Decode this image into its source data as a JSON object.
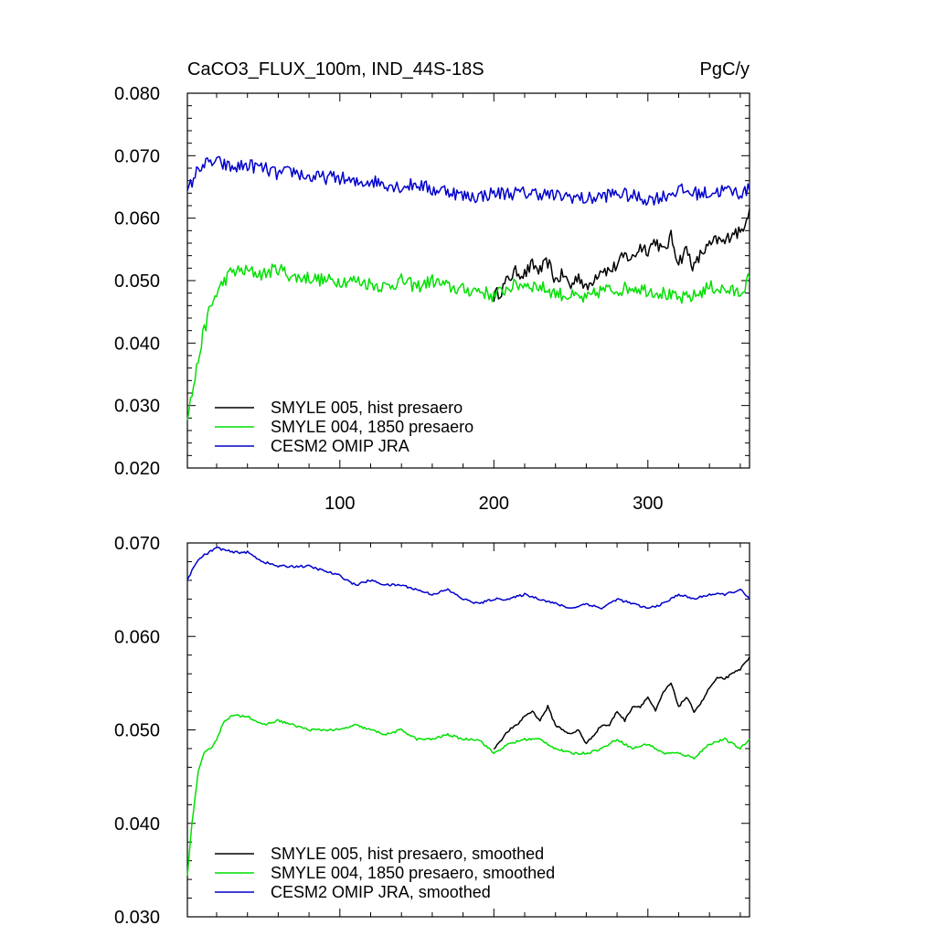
{
  "header": {
    "title": "CaCO3_FLUX_100m, IND_44S-18S",
    "units": "PgC/y"
  },
  "colors": {
    "black_series": "#000000",
    "green_series": "#00e000",
    "blue_series": "#0000cc"
  },
  "chart_data": [
    {
      "type": "line",
      "panel": "top",
      "xlim": [
        1,
        366
      ],
      "ylim": [
        0.02,
        0.08
      ],
      "x_tick_labels": [
        "100",
        "200",
        "300"
      ],
      "x_ticks": [
        100,
        200,
        300
      ],
      "y_ticks": [
        0.02,
        0.03,
        0.04,
        0.05,
        0.06,
        0.07,
        0.08
      ],
      "y_tick_labels": [
        "0.020",
        "0.030",
        "0.040",
        "0.050",
        "0.060",
        "0.070",
        "0.080"
      ],
      "grid": false,
      "legend_position": "bottom-left",
      "series": [
        {
          "name": "SMYLE 005, hist presaero",
          "color": "#000000",
          "points": [
            [
              200,
              0.0475
            ],
            [
              205,
              0.0485
            ],
            [
              210,
              0.0505
            ],
            [
              215,
              0.0515
            ],
            [
              220,
              0.051
            ],
            [
              225,
              0.0525
            ],
            [
              230,
              0.0515
            ],
            [
              235,
              0.053
            ],
            [
              240,
              0.05
            ],
            [
              245,
              0.051
            ],
            [
              250,
              0.049
            ],
            [
              255,
              0.051
            ],
            [
              260,
              0.0485
            ],
            [
              265,
              0.0505
            ],
            [
              270,
              0.052
            ],
            [
              275,
              0.0515
            ],
            [
              280,
              0.0525
            ],
            [
              285,
              0.054
            ],
            [
              290,
              0.0535
            ],
            [
              295,
              0.0555
            ],
            [
              300,
              0.055
            ],
            [
              305,
              0.0565
            ],
            [
              310,
              0.0545
            ],
            [
              315,
              0.057
            ],
            [
              320,
              0.053
            ],
            [
              325,
              0.055
            ],
            [
              330,
              0.052
            ],
            [
              335,
              0.0545
            ],
            [
              340,
              0.0555
            ],
            [
              345,
              0.0565
            ],
            [
              350,
              0.056
            ],
            [
              355,
              0.058
            ],
            [
              360,
              0.0575
            ],
            [
              366,
              0.0615
            ]
          ]
        },
        {
          "name": "SMYLE 004, 1850 presaero",
          "color": "#00e000",
          "points": [
            [
              1,
              0.0285
            ],
            [
              5,
              0.033
            ],
            [
              10,
              0.04
            ],
            [
              15,
              0.045
            ],
            [
              20,
              0.048
            ],
            [
              25,
              0.05
            ],
            [
              30,
              0.0515
            ],
            [
              40,
              0.0515
            ],
            [
              50,
              0.051
            ],
            [
              60,
              0.052
            ],
            [
              70,
              0.0505
            ],
            [
              80,
              0.0505
            ],
            [
              90,
              0.05
            ],
            [
              100,
              0.05
            ],
            [
              110,
              0.05
            ],
            [
              120,
              0.0495
            ],
            [
              130,
              0.049
            ],
            [
              140,
              0.05
            ],
            [
              150,
              0.049
            ],
            [
              160,
              0.05
            ],
            [
              170,
              0.049
            ],
            [
              180,
              0.0485
            ],
            [
              190,
              0.0485
            ],
            [
              200,
              0.0475
            ],
            [
              210,
              0.049
            ],
            [
              220,
              0.0495
            ],
            [
              230,
              0.049
            ],
            [
              240,
              0.048
            ],
            [
              250,
              0.0475
            ],
            [
              260,
              0.047
            ],
            [
              270,
              0.0485
            ],
            [
              280,
              0.0485
            ],
            [
              290,
              0.049
            ],
            [
              300,
              0.0485
            ],
            [
              310,
              0.048
            ],
            [
              320,
              0.047
            ],
            [
              330,
              0.0475
            ],
            [
              340,
              0.049
            ],
            [
              350,
              0.0485
            ],
            [
              360,
              0.048
            ],
            [
              366,
              0.0505
            ]
          ]
        },
        {
          "name": "CESM2 OMIP JRA",
          "color": "#0000cc",
          "points": [
            [
              1,
              0.064
            ],
            [
              5,
              0.0665
            ],
            [
              10,
              0.0685
            ],
            [
              20,
              0.069
            ],
            [
              30,
              0.068
            ],
            [
              40,
              0.0685
            ],
            [
              50,
              0.068
            ],
            [
              60,
              0.067
            ],
            [
              70,
              0.0675
            ],
            [
              80,
              0.0665
            ],
            [
              90,
              0.0665
            ],
            [
              100,
              0.0665
            ],
            [
              110,
              0.0655
            ],
            [
              120,
              0.066
            ],
            [
              130,
              0.0655
            ],
            [
              140,
              0.065
            ],
            [
              150,
              0.0655
            ],
            [
              160,
              0.0645
            ],
            [
              170,
              0.0645
            ],
            [
              180,
              0.0635
            ],
            [
              190,
              0.0635
            ],
            [
              200,
              0.064
            ],
            [
              210,
              0.064
            ],
            [
              220,
              0.064
            ],
            [
              230,
              0.064
            ],
            [
              240,
              0.0635
            ],
            [
              250,
              0.0635
            ],
            [
              260,
              0.063
            ],
            [
              270,
              0.0635
            ],
            [
              280,
              0.064
            ],
            [
              290,
              0.0635
            ],
            [
              300,
              0.063
            ],
            [
              310,
              0.0635
            ],
            [
              320,
              0.0645
            ],
            [
              330,
              0.064
            ],
            [
              340,
              0.064
            ],
            [
              350,
              0.0645
            ],
            [
              360,
              0.064
            ],
            [
              366,
              0.0645
            ]
          ]
        }
      ]
    },
    {
      "type": "line",
      "panel": "bottom",
      "xlim": [
        1,
        366
      ],
      "ylim": [
        0.03,
        0.07
      ],
      "x_ticks": [
        100,
        200,
        300
      ],
      "y_ticks": [
        0.03,
        0.04,
        0.05,
        0.06,
        0.07
      ],
      "y_tick_labels": [
        "0.030",
        "0.040",
        "0.050",
        "0.060",
        "0.070"
      ],
      "grid": false,
      "legend_position": "bottom-left",
      "series": [
        {
          "name": "SMYLE 005, hist presaero, smoothed",
          "color": "#000000",
          "points": [
            [
              200,
              0.048
            ],
            [
              205,
              0.049
            ],
            [
              210,
              0.05
            ],
            [
              215,
              0.0505
            ],
            [
              220,
              0.0515
            ],
            [
              225,
              0.052
            ],
            [
              230,
              0.051
            ],
            [
              235,
              0.0525
            ],
            [
              240,
              0.0505
            ],
            [
              245,
              0.05
            ],
            [
              250,
              0.0495
            ],
            [
              255,
              0.05
            ],
            [
              260,
              0.0485
            ],
            [
              265,
              0.0495
            ],
            [
              270,
              0.0505
            ],
            [
              275,
              0.0505
            ],
            [
              280,
              0.052
            ],
            [
              285,
              0.051
            ],
            [
              290,
              0.0525
            ],
            [
              295,
              0.0525
            ],
            [
              300,
              0.0535
            ],
            [
              305,
              0.052
            ],
            [
              310,
              0.054
            ],
            [
              315,
              0.055
            ],
            [
              320,
              0.0525
            ],
            [
              325,
              0.0535
            ],
            [
              330,
              0.052
            ],
            [
              335,
              0.053
            ],
            [
              340,
              0.0545
            ],
            [
              345,
              0.0555
            ],
            [
              350,
              0.0555
            ],
            [
              355,
              0.056
            ],
            [
              360,
              0.0565
            ],
            [
              366,
              0.0578
            ]
          ]
        },
        {
          "name": "SMYLE 004, 1850 presaero, smoothed",
          "color": "#00e000",
          "points": [
            [
              1,
              0.0345
            ],
            [
              4,
              0.04
            ],
            [
              8,
              0.0455
            ],
            [
              12,
              0.0475
            ],
            [
              16,
              0.048
            ],
            [
              20,
              0.049
            ],
            [
              25,
              0.051
            ],
            [
              30,
              0.0515
            ],
            [
              40,
              0.0515
            ],
            [
              50,
              0.0505
            ],
            [
              60,
              0.051
            ],
            [
              70,
              0.0505
            ],
            [
              80,
              0.05
            ],
            [
              90,
              0.05
            ],
            [
              100,
              0.05
            ],
            [
              110,
              0.0505
            ],
            [
              120,
              0.05
            ],
            [
              130,
              0.0495
            ],
            [
              140,
              0.05
            ],
            [
              150,
              0.049
            ],
            [
              160,
              0.049
            ],
            [
              170,
              0.0495
            ],
            [
              180,
              0.049
            ],
            [
              190,
              0.049
            ],
            [
              200,
              0.0475
            ],
            [
              210,
              0.0485
            ],
            [
              220,
              0.049
            ],
            [
              230,
              0.049
            ],
            [
              240,
              0.048
            ],
            [
              250,
              0.0475
            ],
            [
              260,
              0.0475
            ],
            [
              270,
              0.048
            ],
            [
              280,
              0.049
            ],
            [
              290,
              0.048
            ],
            [
              300,
              0.0485
            ],
            [
              310,
              0.0475
            ],
            [
              320,
              0.0475
            ],
            [
              330,
              0.047
            ],
            [
              340,
              0.0485
            ],
            [
              350,
              0.049
            ],
            [
              360,
              0.048
            ],
            [
              366,
              0.049
            ]
          ]
        },
        {
          "name": "CESM2 OMIP JRA, smoothed",
          "color": "#0000cc",
          "points": [
            [
              1,
              0.066
            ],
            [
              5,
              0.0675
            ],
            [
              10,
              0.0685
            ],
            [
              20,
              0.0695
            ],
            [
              30,
              0.069
            ],
            [
              40,
              0.069
            ],
            [
              50,
              0.068
            ],
            [
              60,
              0.0675
            ],
            [
              70,
              0.0675
            ],
            [
              80,
              0.0675
            ],
            [
              90,
              0.067
            ],
            [
              100,
              0.0665
            ],
            [
              110,
              0.0655
            ],
            [
              120,
              0.066
            ],
            [
              130,
              0.0655
            ],
            [
              140,
              0.0655
            ],
            [
              150,
              0.065
            ],
            [
              160,
              0.0645
            ],
            [
              170,
              0.065
            ],
            [
              180,
              0.064
            ],
            [
              190,
              0.0635
            ],
            [
              200,
              0.064
            ],
            [
              210,
              0.064
            ],
            [
              220,
              0.0645
            ],
            [
              230,
              0.064
            ],
            [
              240,
              0.0635
            ],
            [
              250,
              0.063
            ],
            [
              260,
              0.0635
            ],
            [
              270,
              0.063
            ],
            [
              280,
              0.064
            ],
            [
              290,
              0.0635
            ],
            [
              300,
              0.063
            ],
            [
              310,
              0.0635
            ],
            [
              320,
              0.0645
            ],
            [
              330,
              0.064
            ],
            [
              340,
              0.0645
            ],
            [
              350,
              0.0645
            ],
            [
              360,
              0.065
            ],
            [
              366,
              0.064
            ]
          ]
        }
      ]
    }
  ]
}
